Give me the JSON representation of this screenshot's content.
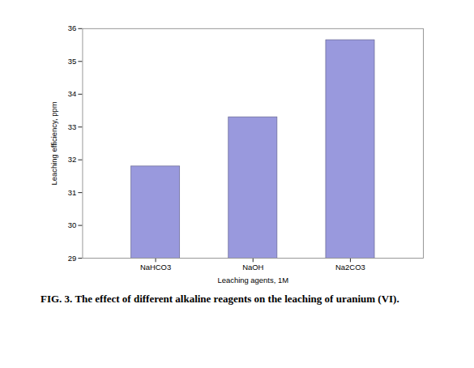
{
  "chart_data": {
    "type": "bar",
    "caption": "FIG. 3. The effect of different alkaline reagents on the leaching of uranium (VI).",
    "xlabel": "Leaching agents, 1M",
    "ylabel": "Leaching efficiency, ppm",
    "categories": [
      "NaHCO3",
      "NaOH",
      "Na2CO3"
    ],
    "values": [
      31.8,
      33.3,
      35.65
    ],
    "color": "#9999dd",
    "ylim": [
      29,
      36
    ],
    "yticks": [
      29,
      30,
      31,
      32,
      33,
      34,
      35,
      36
    ],
    "grid": false
  }
}
